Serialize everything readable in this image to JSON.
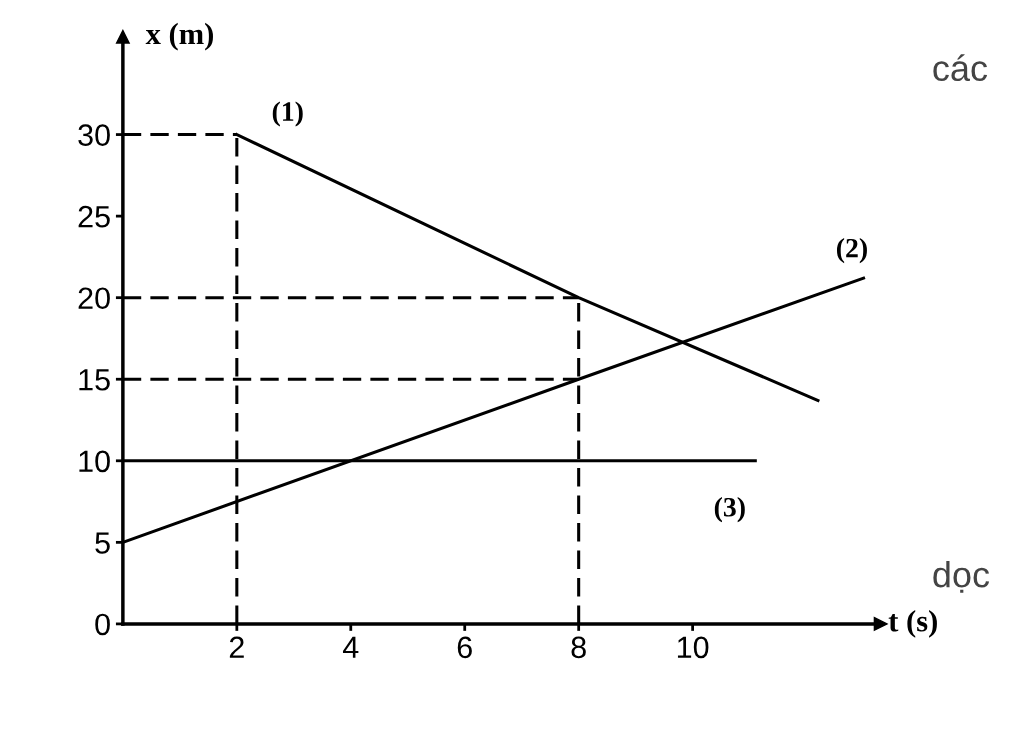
{
  "chart_data": {
    "type": "line",
    "xlabel": "t (s)",
    "ylabel": "x (m)",
    "xlim": [
      0,
      13.3
    ],
    "ylim": [
      0,
      36
    ],
    "xticks": [
      2,
      4,
      6,
      8,
      10
    ],
    "yticks": [
      0,
      5,
      10,
      15,
      20,
      25,
      30
    ],
    "grid": false,
    "legend": false,
    "marker": "none",
    "line_style": "solid",
    "series": [
      {
        "name": "(1)",
        "color": "#000000",
        "x": [
          2,
          8,
          12.2
        ],
        "values": [
          30,
          20,
          13.7
        ]
      },
      {
        "name": "(2)",
        "color": "#000000",
        "x": [
          0,
          8,
          13
        ],
        "values": [
          5,
          15,
          21.2
        ]
      },
      {
        "name": "(3)",
        "color": "#000000",
        "x": [
          0,
          11.1
        ],
        "values": [
          10,
          10
        ]
      },
      {
        "color": "#000000",
        "line_style": "dashed",
        "x": [
          2,
          2
        ],
        "values": [
          0,
          30
        ]
      },
      {
        "color": "#000000",
        "line_style": "dashed",
        "x": [
          8,
          8
        ],
        "values": [
          0,
          20
        ]
      },
      {
        "color": "#000000",
        "line_style": "dashed",
        "x": [
          0,
          2
        ],
        "values": [
          30,
          30
        ]
      },
      {
        "color": "#000000",
        "line_style": "dashed",
        "x": [
          0,
          8
        ],
        "values": [
          20,
          20
        ]
      },
      {
        "color": "#000000",
        "line_style": "dashed",
        "x": [
          0,
          8
        ],
        "values": [
          15,
          15
        ]
      }
    ],
    "annotations": [
      "các",
      "dọc"
    ]
  }
}
